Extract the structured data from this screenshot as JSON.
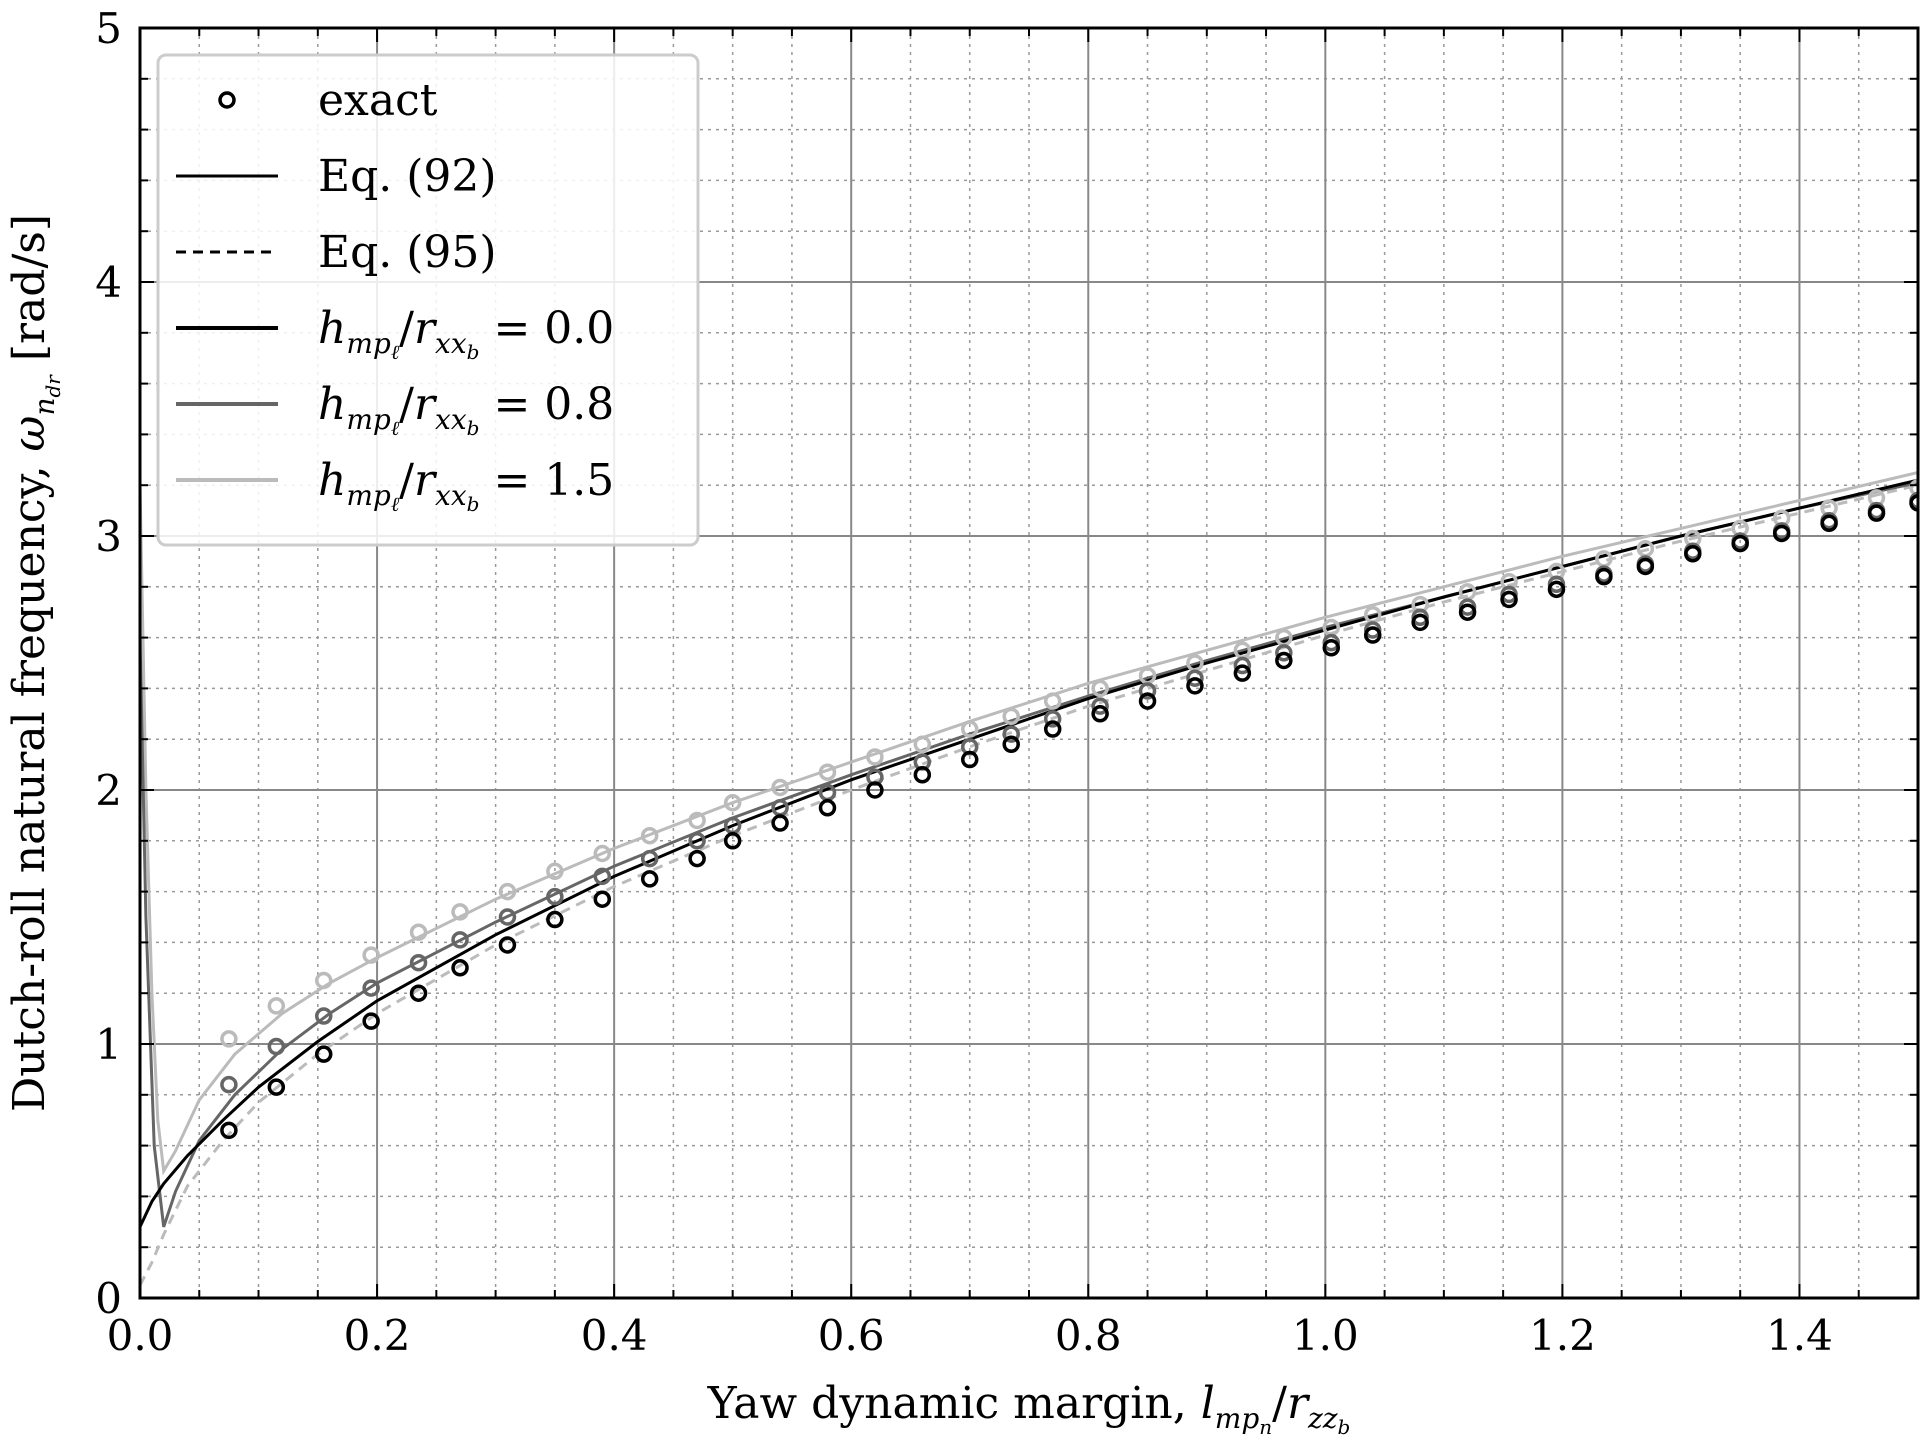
{
  "chart_data": {
    "type": "line",
    "xlabel": "Yaw dynamic margin, l_mp_n/r_zz_b",
    "ylabel": "Dutch-roll natural frequency, ω_n_dr [rad/s]",
    "xlim": [
      0.0,
      1.5
    ],
    "ylim": [
      0,
      5
    ],
    "x_ticks": [
      "0.0",
      "0.2",
      "0.4",
      "0.6",
      "0.8",
      "1.0",
      "1.2",
      "1.4"
    ],
    "y_ticks": [
      "0",
      "1",
      "2",
      "3",
      "4",
      "5"
    ],
    "grid": true,
    "legend_position": "top-left",
    "legend": {
      "exact": "exact",
      "eq92": "Eq. (92)",
      "eq95": "Eq. (95)",
      "param_prefix": "h_mp_ℓ/r_xx_b =",
      "values": [
        "0.0",
        "0.8",
        "1.5"
      ]
    },
    "series": [
      {
        "name": "h_mp_ℓ/r_xx_b = 0.0",
        "color": "#000000",
        "exact_x": [
          0.075,
          0.115,
          0.155,
          0.195,
          0.235,
          0.27,
          0.31,
          0.35,
          0.39,
          0.43,
          0.47,
          0.5,
          0.54,
          0.58,
          0.62,
          0.66,
          0.7,
          0.735,
          0.77,
          0.81,
          0.85,
          0.89,
          0.93,
          0.965,
          1.005,
          1.04,
          1.08,
          1.12,
          1.155,
          1.195,
          1.235,
          1.27,
          1.31,
          1.35,
          1.385,
          1.425,
          1.465,
          1.5
        ],
        "exact_y": [
          0.66,
          0.83,
          0.96,
          1.09,
          1.2,
          1.3,
          1.39,
          1.49,
          1.57,
          1.65,
          1.73,
          1.8,
          1.87,
          1.93,
          2.0,
          2.06,
          2.12,
          2.18,
          2.24,
          2.3,
          2.35,
          2.41,
          2.46,
          2.51,
          2.56,
          2.61,
          2.66,
          2.7,
          2.75,
          2.79,
          2.84,
          2.88,
          2.93,
          2.97,
          3.01,
          3.05,
          3.09,
          3.13
        ],
        "curve_x": [
          0.0,
          0.01,
          0.02,
          0.04,
          0.07,
          0.1,
          0.15,
          0.2,
          0.3,
          0.4,
          0.5,
          0.6,
          0.7,
          0.8,
          0.9,
          1.0,
          1.1,
          1.2,
          1.3,
          1.4,
          1.5
        ],
        "curve_y": [
          0.28,
          0.38,
          0.45,
          0.56,
          0.7,
          0.83,
          1.01,
          1.17,
          1.43,
          1.66,
          1.86,
          2.04,
          2.2,
          2.36,
          2.5,
          2.63,
          2.76,
          2.88,
          3.0,
          3.11,
          3.22
        ]
      },
      {
        "name": "h_mp_ℓ/r_xx_b = 0.8",
        "color": "#666666",
        "exact_x": [
          0.075,
          0.115,
          0.155,
          0.195,
          0.235,
          0.27,
          0.31,
          0.35,
          0.39,
          0.43,
          0.47,
          0.5,
          0.54,
          0.58,
          0.62,
          0.66,
          0.7,
          0.735,
          0.77,
          0.81,
          0.85,
          0.89,
          0.93,
          0.965,
          1.005,
          1.04,
          1.08,
          1.12,
          1.155,
          1.195,
          1.235,
          1.27,
          1.31,
          1.35,
          1.385,
          1.425,
          1.465,
          1.5
        ],
        "exact_y": [
          0.84,
          0.99,
          1.11,
          1.22,
          1.32,
          1.41,
          1.5,
          1.58,
          1.66,
          1.73,
          1.8,
          1.86,
          1.93,
          1.99,
          2.05,
          2.11,
          2.17,
          2.22,
          2.28,
          2.33,
          2.39,
          2.44,
          2.49,
          2.54,
          2.58,
          2.63,
          2.68,
          2.72,
          2.77,
          2.81,
          2.85,
          2.89,
          2.94,
          2.98,
          3.02,
          3.06,
          3.1,
          3.14
        ],
        "curve_x": [
          0.0,
          0.005,
          0.012,
          0.02,
          0.03,
          0.05,
          0.08,
          0.12,
          0.16,
          0.2,
          0.3,
          0.4,
          0.5,
          0.6,
          0.7,
          0.8,
          0.9,
          1.0,
          1.1,
          1.2,
          1.3,
          1.4,
          1.5
        ],
        "curve_y": [
          2.6,
          1.5,
          0.6,
          0.28,
          0.42,
          0.62,
          0.8,
          0.98,
          1.12,
          1.24,
          1.48,
          1.7,
          1.89,
          2.06,
          2.22,
          2.37,
          2.51,
          2.64,
          2.76,
          2.88,
          3.0,
          3.11,
          3.21
        ]
      },
      {
        "name": "h_mp_ℓ/r_xx_b = 1.5",
        "color": "#bbbbbb",
        "exact_x": [
          0.075,
          0.115,
          0.155,
          0.195,
          0.235,
          0.27,
          0.31,
          0.35,
          0.39,
          0.43,
          0.47,
          0.5,
          0.54,
          0.58,
          0.62,
          0.66,
          0.7,
          0.735,
          0.77,
          0.81,
          0.85,
          0.89,
          0.93,
          0.965,
          1.005,
          1.04,
          1.08,
          1.12,
          1.155,
          1.195,
          1.235,
          1.27,
          1.31,
          1.35,
          1.385,
          1.425,
          1.465,
          1.5
        ],
        "exact_y": [
          1.02,
          1.15,
          1.25,
          1.35,
          1.44,
          1.52,
          1.6,
          1.68,
          1.75,
          1.82,
          1.88,
          1.95,
          2.01,
          2.07,
          2.13,
          2.18,
          2.24,
          2.29,
          2.35,
          2.4,
          2.45,
          2.5,
          2.55,
          2.6,
          2.64,
          2.69,
          2.73,
          2.78,
          2.82,
          2.86,
          2.91,
          2.95,
          2.99,
          3.03,
          3.07,
          3.11,
          3.15,
          3.19
        ],
        "curve_x": [
          0.0,
          0.005,
          0.01,
          0.015,
          0.02,
          0.03,
          0.05,
          0.08,
          0.12,
          0.16,
          0.2,
          0.3,
          0.4,
          0.5,
          0.6,
          0.7,
          0.8,
          0.9,
          1.0,
          1.1,
          1.2,
          1.3,
          1.4,
          1.5
        ],
        "curve_y": [
          3.2,
          2.0,
          1.2,
          0.7,
          0.5,
          0.58,
          0.78,
          0.96,
          1.12,
          1.24,
          1.34,
          1.57,
          1.77,
          1.95,
          2.11,
          2.27,
          2.42,
          2.55,
          2.68,
          2.8,
          2.92,
          3.03,
          3.14,
          3.25
        ]
      }
    ],
    "dashed_series": [
      {
        "name": "Eq. (95)",
        "color": "#bbbbbb",
        "x": [
          0.0,
          0.01,
          0.02,
          0.04,
          0.07,
          0.1,
          0.15,
          0.2,
          0.3,
          0.4,
          0.5,
          0.6,
          0.7,
          0.8,
          0.9,
          1.0,
          1.1,
          1.2,
          1.3,
          1.4,
          1.5
        ],
        "y": [
          0.05,
          0.14,
          0.25,
          0.44,
          0.62,
          0.77,
          0.96,
          1.12,
          1.39,
          1.62,
          1.82,
          2.0,
          2.17,
          2.33,
          2.47,
          2.61,
          2.74,
          2.86,
          2.98,
          3.09,
          3.2
        ]
      }
    ]
  }
}
